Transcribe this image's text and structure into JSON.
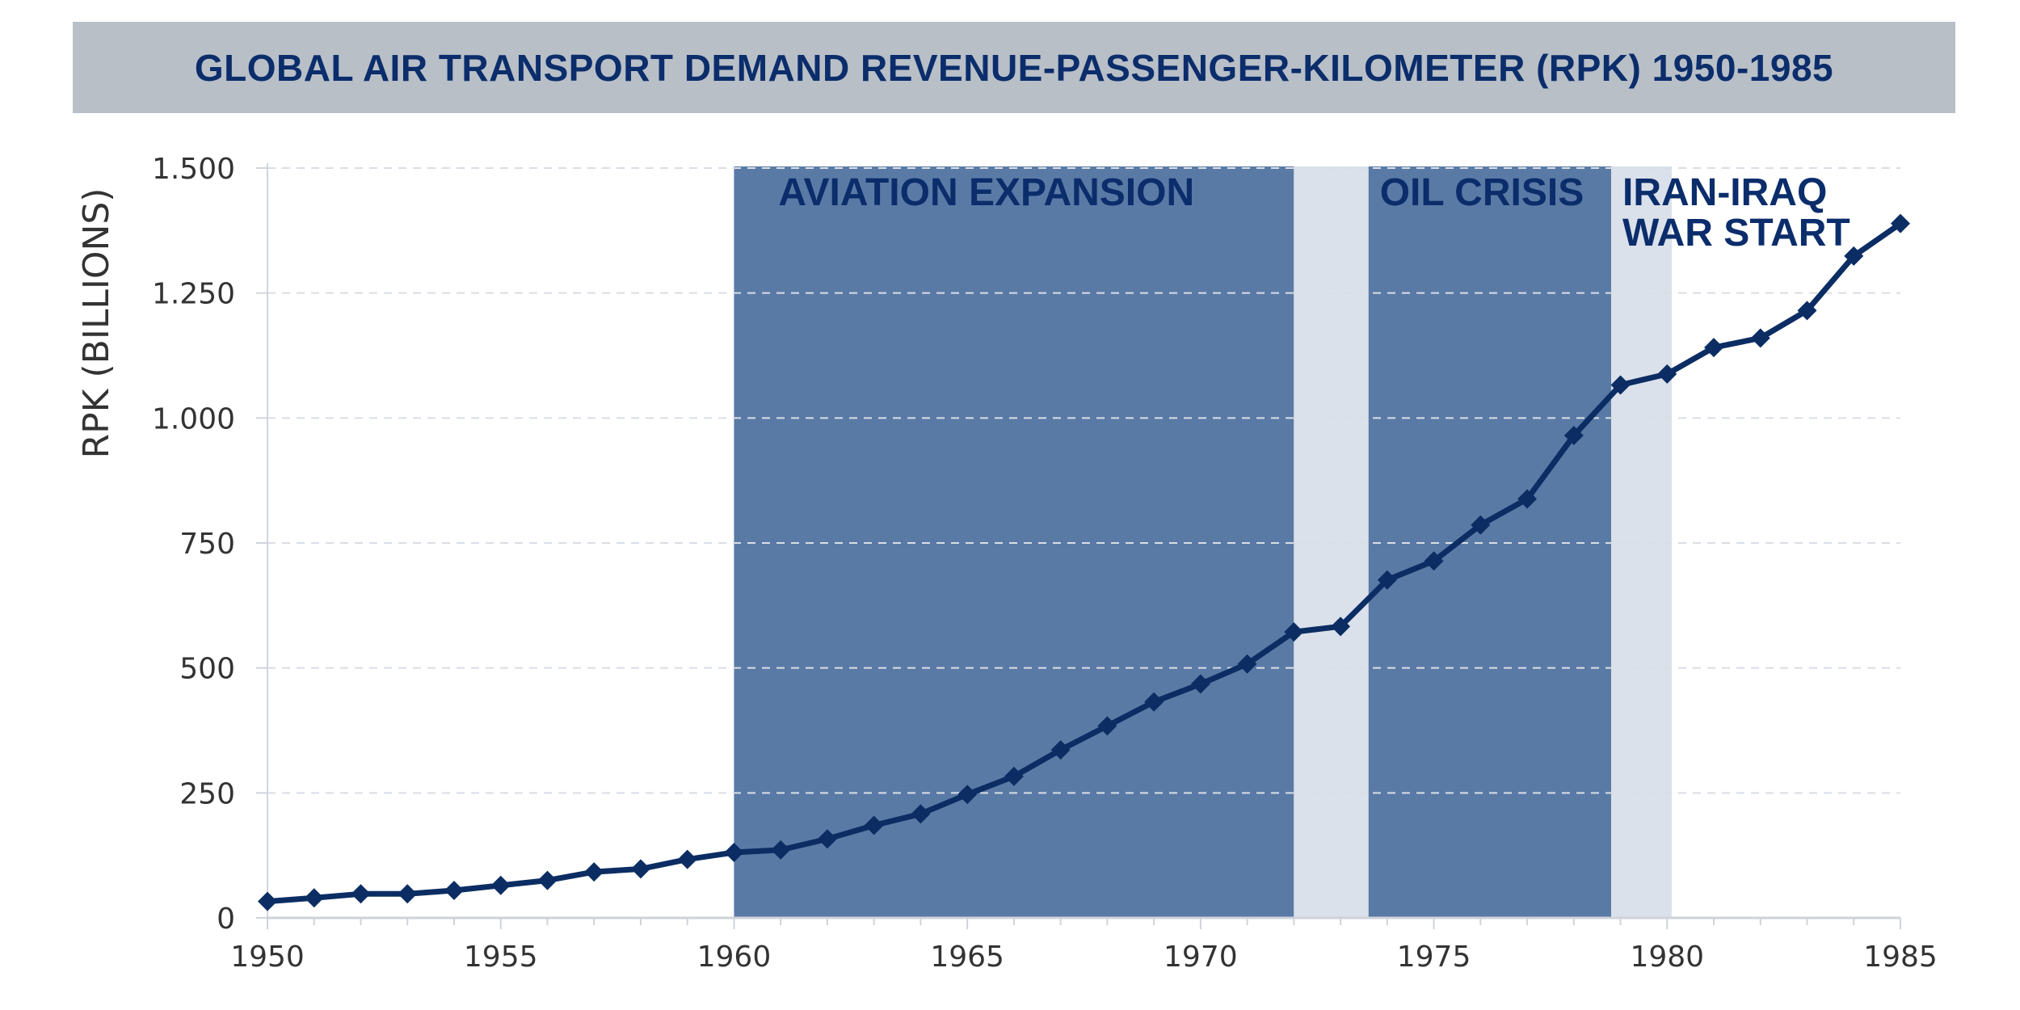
{
  "chart_data": {
    "type": "line",
    "title": "GLOBAL AIR TRANSPORT DEMAND REVENUE-PASSENGER-KILOMETER (RPK) 1950-1985",
    "xlabel": "",
    "ylabel": "RPK (BILLIONS)",
    "xlim": [
      1950,
      1985
    ],
    "ylim": [
      0,
      1500
    ],
    "yticks": [
      0,
      250,
      500,
      750,
      1000,
      1250,
      1500
    ],
    "ytick_labels": [
      "0",
      "250",
      "500",
      "750",
      "1.000",
      "1.250",
      "1.500"
    ],
    "xticks": [
      1950,
      1955,
      1960,
      1965,
      1970,
      1975,
      1980,
      1985
    ],
    "xtick_labels": [
      "1950",
      "1955",
      "1960",
      "1965",
      "1970",
      "1975",
      "1980",
      "1985"
    ],
    "grid": "horizontal dashed",
    "series": [
      {
        "name": "RPK",
        "color": "#0b2d63",
        "x": [
          1950,
          1951,
          1952,
          1953,
          1954,
          1955,
          1956,
          1957,
          1958,
          1959,
          1960,
          1961,
          1962,
          1963,
          1964,
          1965,
          1966,
          1967,
          1968,
          1969,
          1970,
          1971,
          1972,
          1973,
          1974,
          1975,
          1976,
          1977,
          1978,
          1979,
          1980,
          1981,
          1982,
          1983,
          1984,
          1985
        ],
        "values": [
          33,
          40,
          48,
          48,
          55,
          65,
          75,
          92,
          98,
          117,
          131,
          136,
          158,
          185,
          208,
          247,
          283,
          336,
          384,
          432,
          468,
          508,
          572,
          583,
          676,
          714,
          786,
          838,
          965,
          1066,
          1088,
          1141,
          1160,
          1215,
          1324,
          1389
        ]
      }
    ],
    "bands": [
      {
        "label": "AVIATION EXPANSION",
        "lines": [
          "AVIATION EXPANSION"
        ],
        "start": 1960,
        "end": 1972,
        "color": "#5a7aa6"
      },
      {
        "label": "",
        "lines": [],
        "start": 1972,
        "end": 1973.6,
        "color": "#dbe1ea"
      },
      {
        "label": "OIL CRISIS",
        "lines": [
          "OIL CRISIS"
        ],
        "start": 1973.6,
        "end": 1978.8,
        "color": "#5a7aa6"
      },
      {
        "label": "IRAN-IRAQ WAR START",
        "lines": [
          "IRAN-IRAQ",
          "WAR START"
        ],
        "start": 1978.8,
        "end": 1980.1,
        "color": "#dbe1ea"
      }
    ]
  }
}
